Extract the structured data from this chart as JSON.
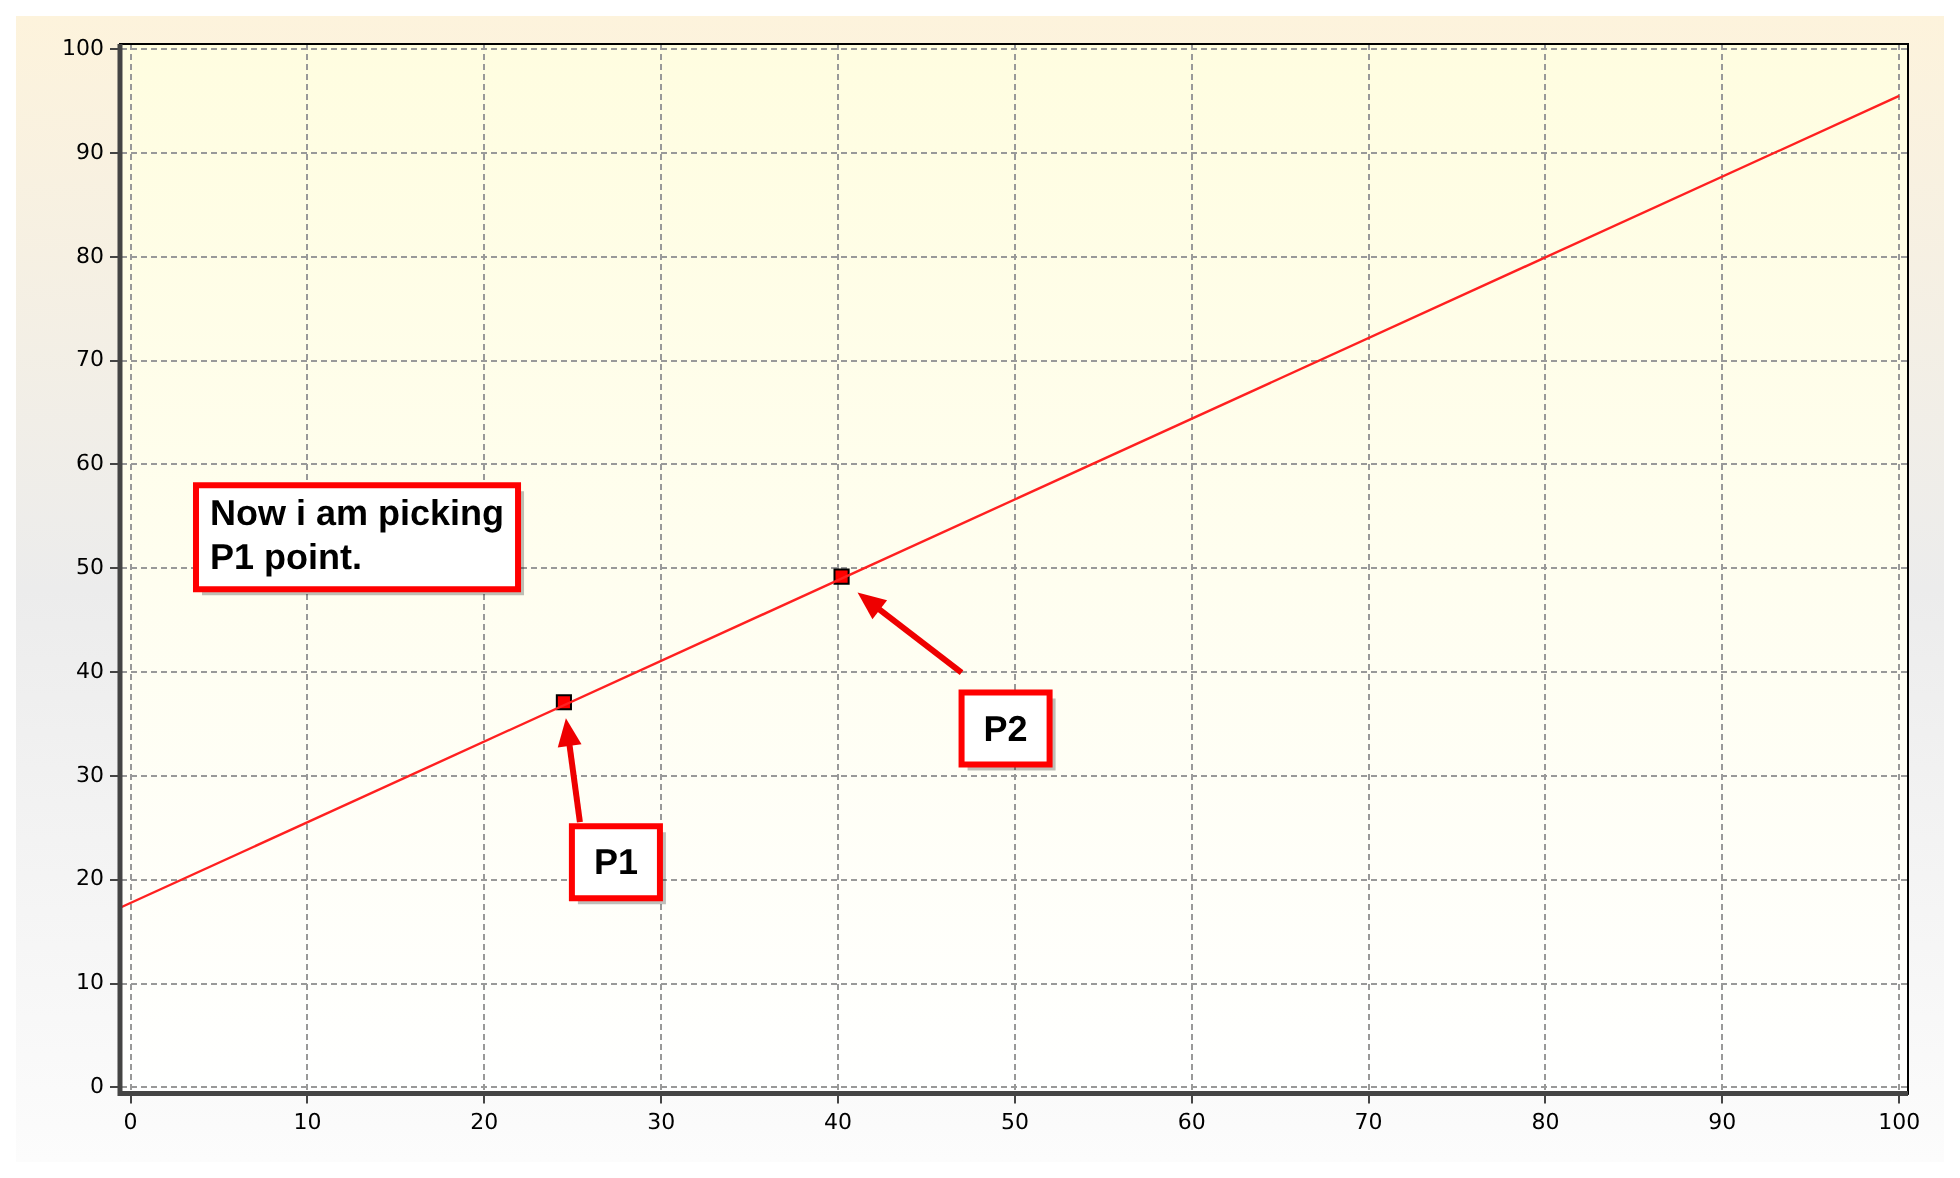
{
  "chart_data": {
    "type": "scatter",
    "xlim": [
      -0.6,
      100.5
    ],
    "ylim": [
      -0.6,
      100.5
    ],
    "xticks": [
      0,
      10,
      20,
      30,
      40,
      50,
      60,
      70,
      80,
      90,
      100
    ],
    "yticks": [
      0,
      10,
      20,
      30,
      40,
      50,
      60,
      70,
      80,
      90,
      100
    ],
    "grid": true,
    "legend": false,
    "series": [
      {
        "type": "line",
        "color": "#ff2020",
        "x": [
          -0.6,
          100
        ],
        "values": [
          17.3,
          95.5
        ],
        "marker": "none"
      },
      {
        "color": "#ff0000",
        "x": [
          24.5,
          40.2
        ],
        "values": [
          37.1,
          49.2
        ],
        "marker": "square"
      }
    ],
    "annotations": [
      "Now i am picking\nP1 point.",
      "P1",
      "P2"
    ]
  }
}
